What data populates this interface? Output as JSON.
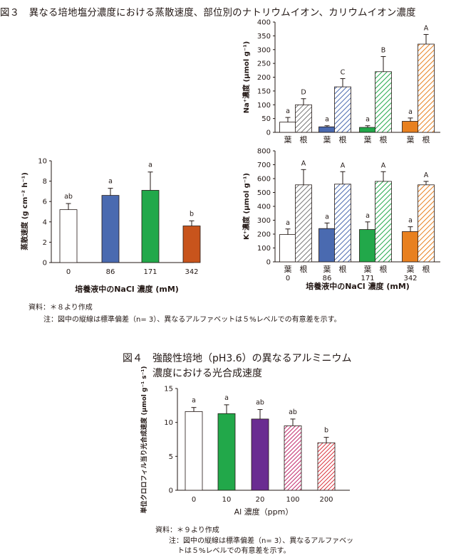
{
  "figure3": {
    "title": "図３　異なる培地塩分濃度における蒸散速度、部位別のナトリウムイオン、カリウムイオン濃度",
    "source": "資料：＊８より作成",
    "note": "注：図中の縦線は標準偏差（n= 3）、異なるアルファベットは５%レベルでの有意差を示す。"
  },
  "figure4": {
    "title_line1": "図４　強酸性培地（pH3.6）の異なるアルミニウム",
    "title_line2": "濃度における光合成速度",
    "source": "資料：＊９より作成",
    "note_line1": "注：図中の縦線は標準偏差（n= 3）、異なるアルファベッ",
    "note_line2": "トは５%レベルでの有意差を示す。"
  },
  "chart_data": [
    {
      "id": "transpiration",
      "type": "bar",
      "title": "",
      "xlabel": "培養液中のNaCl 濃度 (mM)",
      "ylabel": "蒸散速度 (g cm⁻² h⁻¹)",
      "categories": [
        "0",
        "86",
        "171",
        "342"
      ],
      "values": [
        5.2,
        6.6,
        7.1,
        3.6
      ],
      "errors": [
        0.6,
        0.7,
        1.8,
        0.5
      ],
      "letters": [
        "ab",
        "a",
        "a",
        "b"
      ],
      "ylim": [
        0,
        10
      ],
      "yticks": [
        0,
        2,
        4,
        6,
        8,
        10
      ],
      "colors": [
        "#ffffff",
        "#4a6ab0",
        "#22a84a",
        "#c8541c"
      ]
    },
    {
      "id": "sodium",
      "type": "bar",
      "title": "",
      "xlabel": "",
      "ylabel": "Na⁺濃度 (μmol g⁻¹)",
      "groups": [
        "0",
        "86",
        "171",
        "342"
      ],
      "parts": [
        "葉",
        "根"
      ],
      "series": [
        {
          "name": "葉",
          "values": [
            37,
            20,
            18,
            40
          ],
          "errors": [
            17,
            4,
            6,
            12
          ],
          "letters": [
            "a",
            "a",
            "a",
            "a"
          ]
        },
        {
          "name": "根",
          "values": [
            100,
            165,
            220,
            320
          ],
          "errors": [
            22,
            30,
            55,
            35
          ],
          "letters": [
            "D",
            "C",
            "B",
            "A"
          ]
        }
      ],
      "ylim": [
        0,
        400
      ],
      "yticks": [
        0,
        50,
        100,
        150,
        200,
        250,
        300,
        350,
        400
      ],
      "colors": [
        "#ffffff",
        "#4a6ab0",
        "#22a84a",
        "#e8801f"
      ]
    },
    {
      "id": "potassium",
      "type": "bar",
      "title": "",
      "xlabel": "培養液中のNaCl 濃度 (mM)",
      "ylabel": "K⁺濃度 (μmol g⁻¹)",
      "groups": [
        "0",
        "86",
        "171",
        "342"
      ],
      "parts": [
        "葉",
        "根"
      ],
      "series": [
        {
          "name": "葉",
          "values": [
            197,
            240,
            233,
            218
          ],
          "errors": [
            40,
            40,
            55,
            35
          ],
          "letters": [
            "a",
            "a",
            "a",
            "a"
          ]
        },
        {
          "name": "根",
          "values": [
            555,
            560,
            580,
            555
          ],
          "errors": [
            110,
            90,
            70,
            25
          ],
          "letters": [
            "A",
            "A",
            "A",
            "A"
          ]
        }
      ],
      "ylim": [
        0,
        800
      ],
      "yticks": [
        0,
        100,
        200,
        300,
        400,
        500,
        600,
        700,
        800
      ],
      "colors": [
        "#ffffff",
        "#4a6ab0",
        "#22a84a",
        "#e8801f"
      ]
    },
    {
      "id": "photosynthesis",
      "type": "bar",
      "title": "",
      "xlabel": "Al 濃度（ppm）",
      "ylabel": "単位クロロフィル当り光合成速度 (μmol g⁻¹ s⁻¹)",
      "categories": [
        "0",
        "10",
        "20",
        "100",
        "200"
      ],
      "values": [
        11.6,
        11.3,
        10.5,
        9.5,
        7.0
      ],
      "errors": [
        0.6,
        1.3,
        1.4,
        1.0,
        0.8
      ],
      "letters": [
        "a",
        "a",
        "ab",
        "ab",
        "b"
      ],
      "ylim": [
        0,
        15
      ],
      "yticks": [
        0,
        5,
        10,
        15
      ],
      "colors": [
        "#ffffff",
        "#22a84a",
        "#6a2c91",
        "#c0286a",
        "#d8323c"
      ]
    }
  ]
}
